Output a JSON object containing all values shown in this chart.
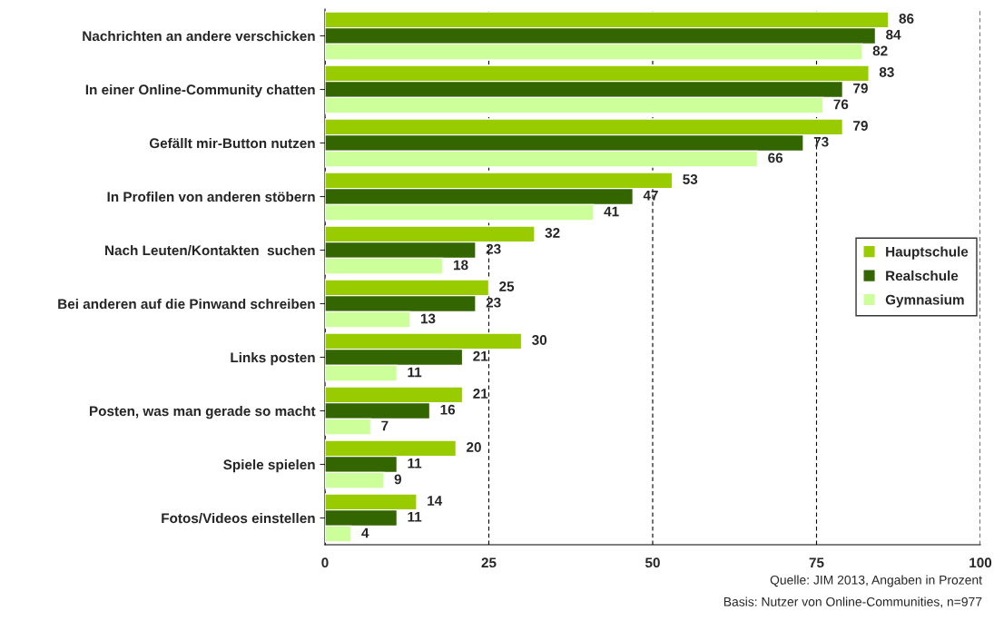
{
  "chart_data": {
    "type": "bar",
    "orientation": "horizontal",
    "categories": [
      "Nachrichten an andere verschicken",
      "In einer Online-Community chatten",
      "Gefällt mir-Button nutzen",
      "In Profilen von anderen stöbern",
      "Nach Leuten/Kontakten  suchen",
      "Bei anderen auf die Pinwand schreiben",
      "Links posten",
      "Posten, was man gerade so macht",
      "Spiele spielen",
      "Fotos/Videos einstellen"
    ],
    "series": [
      {
        "name": "Hauptschule",
        "color": "#99cc00",
        "values": [
          86,
          83,
          79,
          53,
          32,
          25,
          30,
          21,
          20,
          14
        ]
      },
      {
        "name": "Realschule",
        "color": "#336600",
        "values": [
          84,
          79,
          73,
          47,
          23,
          23,
          21,
          16,
          11,
          11
        ]
      },
      {
        "name": "Gymnasium",
        "color": "#ccff99",
        "values": [
          82,
          76,
          66,
          41,
          18,
          13,
          11,
          7,
          9,
          4
        ]
      }
    ],
    "xlim": [
      0,
      100
    ],
    "xticks": [
      0,
      25,
      50,
      75,
      100
    ],
    "grid": "x",
    "legend": "right",
    "data_labels": true,
    "annotations": [
      "Quelle: JIM 2013, Angaben in Prozent",
      "Basis: Nutzer von Online-Communities, n=977"
    ]
  }
}
